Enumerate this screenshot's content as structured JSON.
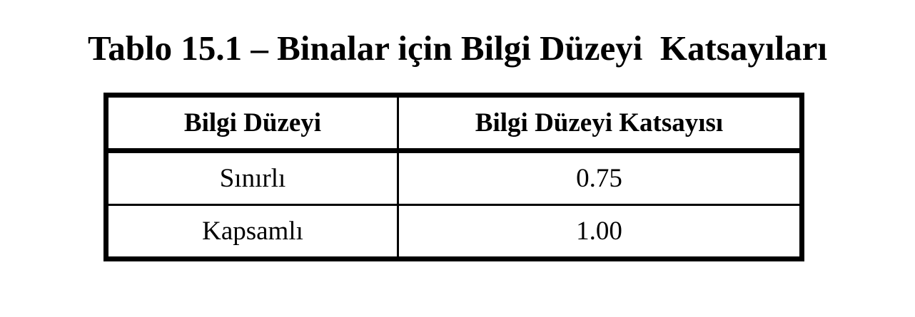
{
  "title": "Tablo 15.1 – Binalar için Bilgi Düzeyi  Katsayıları",
  "table": {
    "headers": [
      "Bilgi Düzeyi",
      "Bilgi Düzeyi Katsayısı"
    ],
    "rows": [
      [
        "Sınırlı",
        "0.75"
      ],
      [
        "Kapsamlı",
        "1.00"
      ]
    ]
  }
}
